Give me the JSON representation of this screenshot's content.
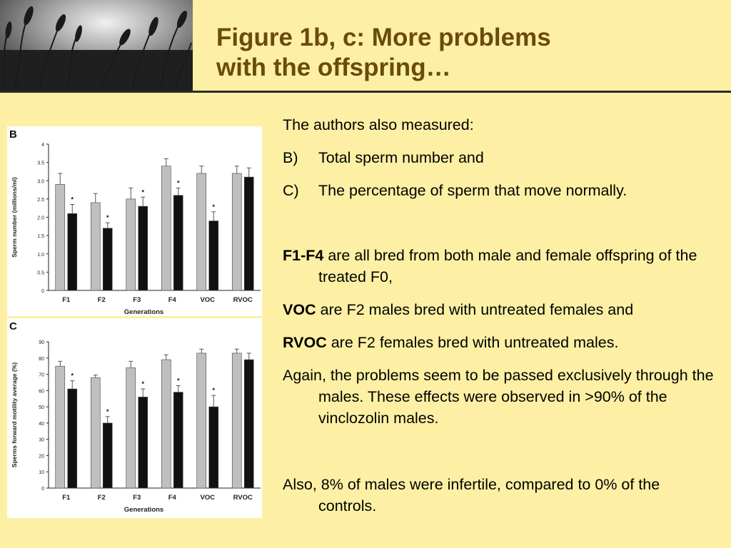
{
  "header": {
    "title_line1": "Figure 1b, c: More problems",
    "title_line2": "with the offspring…"
  },
  "body": {
    "intro": "The authors also measured:",
    "items": [
      {
        "label": "B)",
        "text": "Total sperm number and"
      },
      {
        "label": "C)",
        "text": "The percentage of sperm that move normally."
      }
    ],
    "f1f4_bold": "F1-F4",
    "f1f4_rest": " are all bred from both male and female offspring of the treated F0,",
    "voc_bold": "VOC",
    "voc_rest": " are F2 males bred with untreated females and",
    "rvoc_bold": "RVOC",
    "rvoc_rest": " are F2 females bred with untreated males.",
    "again": "Again, the problems seem to be passed exclusively through the males.  These effects were observed in >90% of the vinclozolin males.",
    "also": "Also, 8% of males were infertile, compared to 0%  of the controls."
  },
  "colors": {
    "title": "#6b4a0d",
    "background": "#fdf0a4",
    "control_bar": "#bfbfbf",
    "treated_bar": "#111111"
  },
  "chart_data": [
    {
      "type": "bar",
      "panel_label": "B",
      "categories": [
        "F1",
        "F2",
        "F3",
        "F4",
        "VOC",
        "RVOC"
      ],
      "series": [
        {
          "values": [
            2.9,
            2.4,
            2.5,
            3.4,
            3.2,
            3.2
          ],
          "errors": [
            0.3,
            0.25,
            0.3,
            0.2,
            0.2,
            0.2
          ]
        },
        {
          "values": [
            2.1,
            1.7,
            2.3,
            2.6,
            1.9,
            3.1
          ],
          "errors": [
            0.25,
            0.15,
            0.25,
            0.2,
            0.25,
            0.25
          ]
        }
      ],
      "significant": [
        "*",
        "*",
        "*",
        "*",
        "*",
        ""
      ],
      "xlabel": "Generations",
      "ylabel": "Sperm number (millions/ml)",
      "ylim": [
        0,
        4
      ],
      "yticks": [
        "0",
        "0.5",
        "1.0",
        "1.5",
        "2.0",
        "2.5",
        "3.0",
        "3.5",
        "4"
      ]
    },
    {
      "type": "bar",
      "panel_label": "C",
      "categories": [
        "F1",
        "F2",
        "F3",
        "F4",
        "VOC",
        "RVOC"
      ],
      "series": [
        {
          "values": [
            75,
            68,
            74,
            79,
            83,
            83
          ],
          "errors": [
            3,
            1.5,
            4,
            3,
            2.5,
            2.5
          ]
        },
        {
          "values": [
            61,
            40,
            56,
            59,
            50,
            79
          ],
          "errors": [
            5,
            4,
            5,
            4,
            7,
            4
          ]
        }
      ],
      "significant": [
        "*",
        "*",
        "*",
        "*",
        "*",
        ""
      ],
      "xlabel": "Generations",
      "ylabel": "Sperms forward motility average (%)",
      "ylim": [
        0,
        90
      ],
      "yticks": [
        "0",
        "10",
        "20",
        "30",
        "40",
        "50",
        "60",
        "70",
        "80",
        "90"
      ]
    }
  ]
}
